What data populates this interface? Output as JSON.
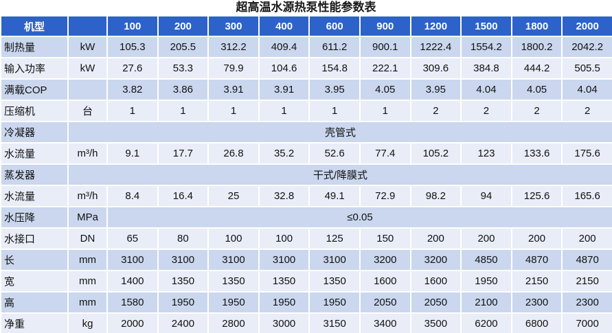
{
  "title": "超高温水源热泵性能参数表",
  "table": {
    "header": {
      "label": "机型",
      "models": [
        "100",
        "200",
        "300",
        "400",
        "600",
        "900",
        "1200",
        "1500",
        "1800",
        "2000"
      ]
    },
    "rows": [
      {
        "name": "制热量",
        "unit": "kW",
        "values": [
          "105.3",
          "205.5",
          "312.2",
          "409.4",
          "611.2",
          "900.1",
          "1222.4",
          "1554.2",
          "1800.2",
          "2042.2"
        ]
      },
      {
        "name": "输入功率",
        "unit": "kW",
        "values": [
          "27.6",
          "53.3",
          "79.9",
          "104.6",
          "154.8",
          "222.1",
          "309.6",
          "384.8",
          "444.2",
          "505.5"
        ]
      },
      {
        "name": "满载COP",
        "values": [
          "3.82",
          "3.86",
          "3.91",
          "3.91",
          "3.95",
          "4.05",
          "3.95",
          "4.04",
          "4.05",
          "4.04"
        ]
      },
      {
        "name": "压缩机",
        "unit": "台",
        "values": [
          "1",
          "1",
          "1",
          "1",
          "1",
          "1",
          "2",
          "2",
          "2",
          "2"
        ]
      },
      {
        "name": "冷凝器",
        "merged": "壳管式"
      },
      {
        "name": "水流量",
        "unit": "m³/h",
        "values": [
          "9.1",
          "17.7",
          "26.8",
          "35.2",
          "52.6",
          "77.4",
          "105.2",
          "123",
          "133.6",
          "175.6"
        ]
      },
      {
        "name": "蒸发器",
        "merged": "干式/降膜式"
      },
      {
        "name": "水流量",
        "unit": "m³/h",
        "values": [
          "8.4",
          "16.4",
          "25",
          "32.8",
          "49.1",
          "72.9",
          "98.2",
          "94",
          "125.6",
          "165.6"
        ]
      },
      {
        "name": "水压降",
        "unit": "MPa",
        "merged": "≤0.05"
      },
      {
        "name": "水接口",
        "unit": "DN",
        "values": [
          "65",
          "80",
          "100",
          "100",
          "125",
          "150",
          "200",
          "200",
          "200",
          "200"
        ]
      },
      {
        "name": "长",
        "unit": "mm",
        "values": [
          "3100",
          "3100",
          "3100",
          "3100",
          "3100",
          "3200",
          "3200",
          "4850",
          "4870",
          "4870"
        ]
      },
      {
        "name": "宽",
        "unit": "mm",
        "values": [
          "1400",
          "1350",
          "1350",
          "1350",
          "1350",
          "1600",
          "1600",
          "1950",
          "2150",
          "2150"
        ]
      },
      {
        "name": "高",
        "unit": "mm",
        "values": [
          "1580",
          "1950",
          "1950",
          "1950",
          "1950",
          "2050",
          "2050",
          "2100",
          "2300",
          "2300"
        ]
      },
      {
        "name": "净重",
        "unit": "kg",
        "values": [
          "2000",
          "2400",
          "2800",
          "3000",
          "3150",
          "3400",
          "3500",
          "6200",
          "6800",
          "7000"
        ]
      }
    ]
  }
}
